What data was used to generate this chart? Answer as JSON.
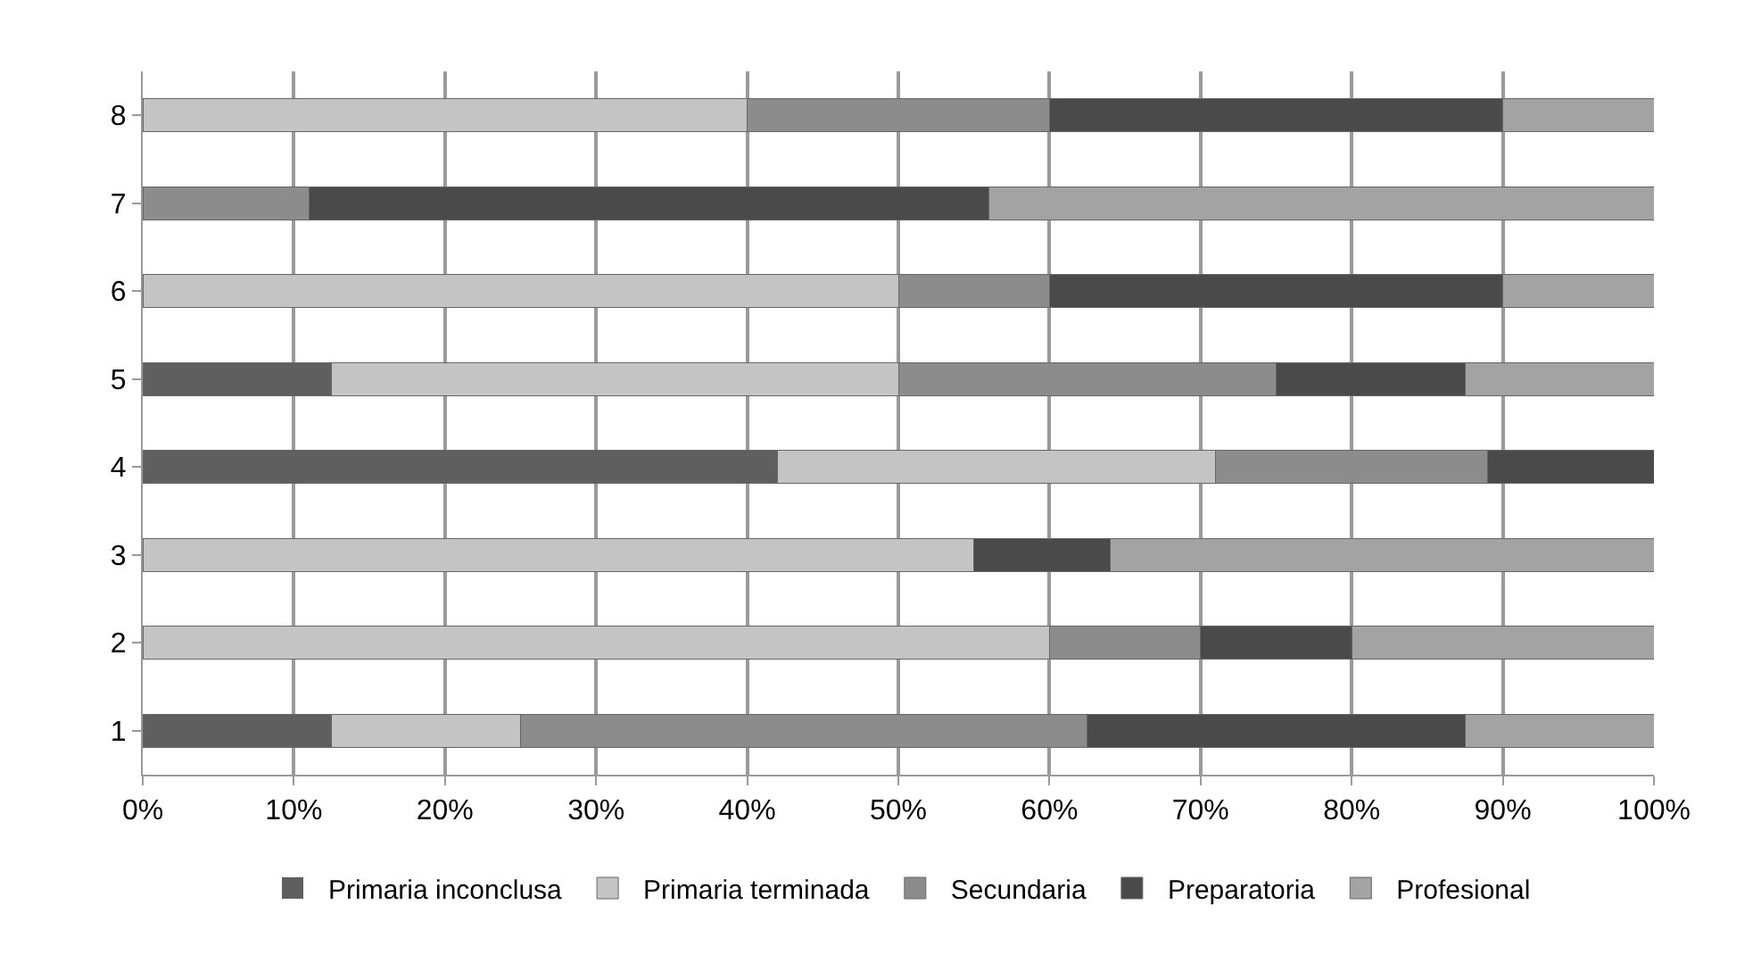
{
  "chart_data": {
    "type": "bar",
    "orientation": "horizontal",
    "stacked": true,
    "categories": [
      "8",
      "7",
      "6",
      "5",
      "4",
      "3",
      "2",
      "1"
    ],
    "series": [
      {
        "name": "Primaria inconclusa",
        "color": "#5f5f5f",
        "values": [
          0,
          0,
          0,
          12.5,
          42,
          0,
          0,
          12.5
        ]
      },
      {
        "name": "Primaria terminada",
        "color": "#c4c4c4",
        "values": [
          40,
          0,
          50,
          37.5,
          29,
          55,
          60,
          12.5
        ]
      },
      {
        "name": "Secundaria",
        "color": "#8c8c8c",
        "values": [
          20,
          11,
          10,
          25,
          18,
          0,
          10,
          37.5
        ]
      },
      {
        "name": "Preparatoria",
        "color": "#4a4a4a",
        "values": [
          30,
          45,
          30,
          12.5,
          11,
          9,
          10,
          25
        ]
      },
      {
        "name": "Profesional",
        "color": "#a3a3a3",
        "values": [
          10,
          44,
          10,
          12.5,
          0,
          36,
          20,
          12.5
        ]
      }
    ],
    "xlim": [
      0,
      100
    ],
    "xticks": [
      {
        "value": 0,
        "label": "0%"
      },
      {
        "value": 10,
        "label": "10%"
      },
      {
        "value": 20,
        "label": "20%"
      },
      {
        "value": 30,
        "label": "30%"
      },
      {
        "value": 40,
        "label": "40%"
      },
      {
        "value": 50,
        "label": "50%"
      },
      {
        "value": 60,
        "label": "60%"
      },
      {
        "value": 70,
        "label": "70%"
      },
      {
        "value": 80,
        "label": "80%"
      },
      {
        "value": 90,
        "label": "90%"
      },
      {
        "value": 100,
        "label": "100%"
      }
    ],
    "grid": "x",
    "legend": "bottom"
  }
}
